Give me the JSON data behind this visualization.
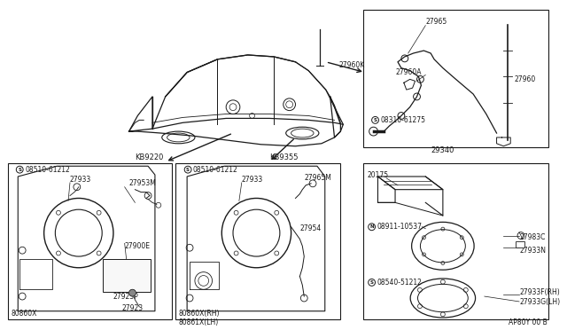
{
  "bg_color": "#ffffff",
  "line_color": "#1a1a1a",
  "fig_width": 6.4,
  "fig_height": 3.72,
  "dpi": 100,
  "watermark": "AP80Y 00 B",
  "box1_label": "KB9220",
  "box2_label": "KB9355",
  "box34_label": "29340"
}
